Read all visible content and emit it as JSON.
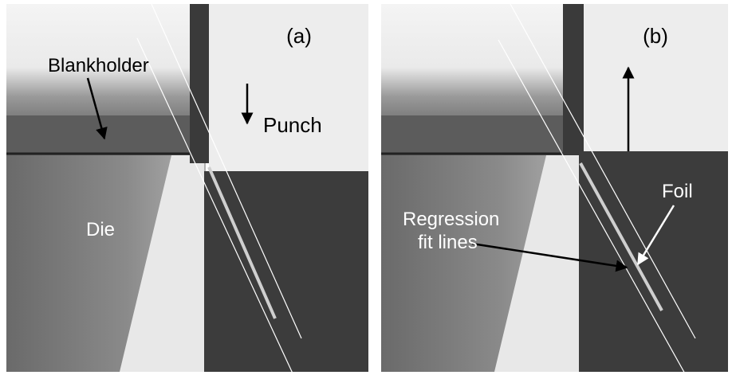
{
  "panels": [
    {
      "label": "(a)",
      "annotations": [
        "Blankholder",
        "Punch",
        "Die"
      ]
    },
    {
      "label": "(b)",
      "annotations": [
        "Foil"
      ],
      "regression_label": [
        "Regression",
        "fit lines"
      ]
    }
  ]
}
